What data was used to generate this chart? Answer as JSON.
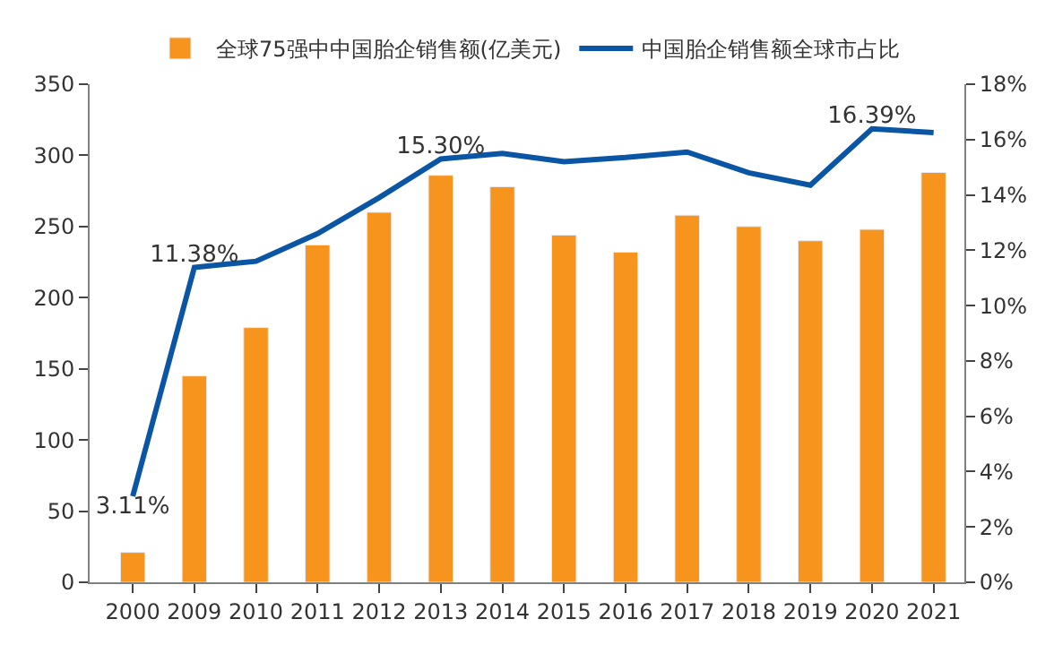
{
  "chart_data": {
    "type": "bar",
    "categories": [
      "2000",
      "2009",
      "2010",
      "2011",
      "2012",
      "2013",
      "2014",
      "2015",
      "2016",
      "2017",
      "2018",
      "2019",
      "2020",
      "2021"
    ],
    "series": [
      {
        "name": "全球75强中中国胎企销售额(亿美元)",
        "color": "#f7941d",
        "values": [
          21,
          145,
          179,
          237,
          260,
          286,
          278,
          244,
          232,
          258,
          250,
          240,
          248,
          288
        ]
      },
      {
        "name": "中国胎企销售额全球市占比",
        "type": "line",
        "axis": "y2",
        "color": "#0b56a4",
        "values": [
          3.11,
          11.38,
          11.6,
          12.6,
          13.9,
          15.3,
          15.5,
          15.2,
          15.35,
          15.55,
          14.8,
          14.35,
          16.39,
          16.25
        ],
        "value_labels": [
          "3.11%",
          "11.38%",
          null,
          null,
          null,
          "15.30%",
          null,
          null,
          null,
          null,
          null,
          null,
          "16.39%",
          null
        ]
      }
    ],
    "ylim": [
      0,
      350
    ],
    "yticks": [
      0,
      50,
      100,
      150,
      200,
      250,
      300,
      350
    ],
    "y2lim": [
      0,
      18
    ],
    "y2ticks": [
      {
        "value": 0,
        "label": "0%"
      },
      {
        "value": 2,
        "label": "2%"
      },
      {
        "value": 4,
        "label": "4%"
      },
      {
        "value": 6,
        "label": "6%"
      },
      {
        "value": 8,
        "label": "8%"
      },
      {
        "value": 10,
        "label": "10%"
      },
      {
        "value": 12,
        "label": "12%"
      },
      {
        "value": 14,
        "label": "14%"
      },
      {
        "value": 16,
        "label": "16%"
      },
      {
        "value": 18,
        "label": "18%"
      }
    ],
    "legend": "top",
    "marker": "none",
    "line_style": "solid"
  }
}
